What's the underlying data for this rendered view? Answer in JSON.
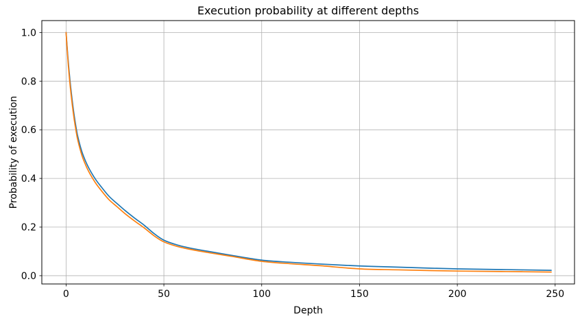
{
  "figure": {
    "title": "Execution probability at different depths",
    "xlabel": "Depth",
    "ylabel": "Probability of execution"
  },
  "chart_data": {
    "type": "line",
    "title": "Execution probability at different depths",
    "xlabel": "Depth",
    "ylabel": "Probability of execution",
    "x": [
      0,
      1,
      2,
      3,
      4,
      5,
      6,
      8,
      10,
      12,
      15,
      18,
      22,
      26,
      30,
      35,
      40,
      45,
      50,
      57,
      65,
      72,
      85,
      100,
      115,
      130,
      150,
      170,
      200,
      225,
      248
    ],
    "series": [
      {
        "name": "blue",
        "color": "#1f77b4",
        "values": [
          1.0,
          0.892,
          0.803,
          0.73,
          0.667,
          0.615,
          0.572,
          0.512,
          0.47,
          0.437,
          0.397,
          0.365,
          0.326,
          0.297,
          0.269,
          0.237,
          0.207,
          0.173,
          0.146,
          0.126,
          0.111,
          0.101,
          0.083,
          0.064,
          0.055,
          0.048,
          0.04,
          0.035,
          0.028,
          0.025,
          0.022
        ]
      },
      {
        "name": "orange",
        "color": "#ff7f0e",
        "values": [
          1.0,
          0.88,
          0.788,
          0.714,
          0.651,
          0.6,
          0.557,
          0.497,
          0.455,
          0.422,
          0.382,
          0.35,
          0.312,
          0.284,
          0.256,
          0.225,
          0.196,
          0.164,
          0.139,
          0.12,
          0.106,
          0.096,
          0.079,
          0.059,
          0.049,
          0.041,
          0.028,
          0.024,
          0.019,
          0.017,
          0.015
        ]
      }
    ],
    "xticks": [
      0,
      50,
      100,
      150,
      200,
      250
    ],
    "xtick_labels": [
      "0",
      "50",
      "100",
      "150",
      "200",
      "250"
    ],
    "yticks": [
      0.0,
      0.2,
      0.4,
      0.6,
      0.8,
      1.0
    ],
    "ytick_labels": [
      "0.0",
      "0.2",
      "0.4",
      "0.6",
      "0.8",
      "1.0"
    ],
    "xlim": [
      -12.4,
      259.9
    ],
    "ylim": [
      -0.034,
      1.049
    ],
    "grid": true,
    "legend": "none"
  },
  "colors": {
    "grid": "#b0b0b0",
    "spine": "#000000",
    "background": "#ffffff",
    "text": "#000000",
    "series_blue": "#1f77b4",
    "series_orange": "#ff7f0e"
  }
}
